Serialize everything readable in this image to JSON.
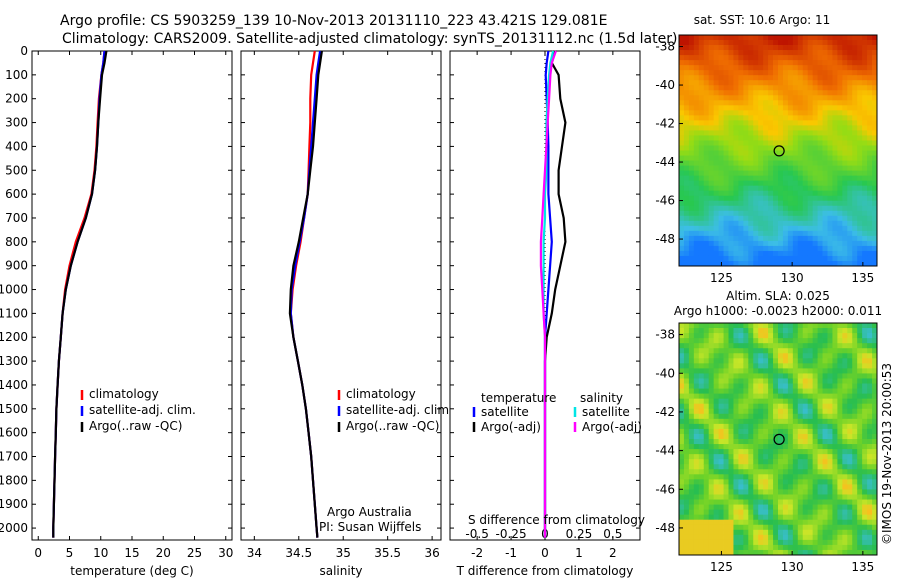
{
  "header": {
    "line1": "Argo profile: CS 5903259_139 10-Nov-2013 20131110_223 43.421S 129.081E",
    "line2": "Climatology: CARS2009. Satellite-adjusted climatology: synTS_20131112.nc (1.5d later)"
  },
  "depth_axis": {
    "ticks": [
      "0",
      "100",
      "200",
      "300",
      "400",
      "500",
      "600",
      "700",
      "800",
      "900",
      "1000",
      "1100",
      "1200",
      "1300",
      "1400",
      "1500",
      "1600",
      "1700",
      "1800",
      "1900",
      "2000"
    ]
  },
  "footer_text": {
    "org": "Argo Australia",
    "pi": "PI: Susan Wijffels",
    "s_diff_label": "S difference from climatology",
    "vertical_stamp": "©IMOS 19-Nov-2013 20:00:53"
  },
  "colors": {
    "climatology": "#ff0000",
    "satellite": "#0000ff",
    "argo": "#000000",
    "sal_satellite": "#00e5e5",
    "sal_argo": "#ff00ff"
  },
  "chart_data": [
    {
      "type": "line",
      "name": "temperature",
      "xlabel": "temperature (deg C)",
      "ylabel": "",
      "xlim": [
        -1,
        31
      ],
      "ylim": [
        2050,
        0
      ],
      "xticks": [
        "0",
        "5",
        "10",
        "15",
        "20",
        "25",
        "30"
      ],
      "legend": [
        "climatology",
        "satellite-adj. clim.",
        "Argo(..raw -QC)"
      ],
      "depth": [
        0,
        50,
        100,
        200,
        300,
        400,
        500,
        600,
        700,
        800,
        900,
        1000,
        1100,
        1200,
        1300,
        1400,
        1500,
        1600,
        1700,
        1800,
        1900,
        2000,
        2040
      ],
      "series": [
        {
          "name": "climatology",
          "values": [
            10.6,
            10.4,
            10.1,
            9.7,
            9.5,
            9.3,
            9.0,
            8.5,
            7.4,
            6.0,
            5.0,
            4.3,
            3.9,
            3.6,
            3.3,
            3.1,
            2.9,
            2.8,
            2.7,
            2.6,
            2.5,
            2.4,
            2.4
          ]
        },
        {
          "name": "satellite-adj. clim.",
          "values": [
            10.6,
            10.4,
            10.1,
            9.8,
            9.6,
            9.4,
            9.1,
            8.6,
            7.6,
            6.3,
            5.2,
            4.4,
            3.9,
            3.6,
            3.3,
            3.1,
            2.9,
            2.8,
            2.7,
            2.6,
            2.5,
            2.4,
            2.4
          ]
        },
        {
          "name": "Argo(..raw -QC)",
          "values": [
            10.9,
            10.6,
            10.2,
            9.9,
            9.6,
            9.4,
            9.1,
            8.6,
            7.6,
            6.3,
            5.2,
            4.4,
            3.9,
            3.6,
            3.3,
            3.1,
            2.9,
            2.8,
            2.7,
            2.6,
            2.5,
            2.4,
            2.4
          ]
        }
      ]
    },
    {
      "type": "line",
      "name": "salinity",
      "xlabel": "salinity",
      "xlim": [
        33.85,
        36.1
      ],
      "ylim": [
        2050,
        0
      ],
      "xticks": [
        "34",
        "34.5",
        "35",
        "35.5",
        "36"
      ],
      "legend": [
        "climatology",
        "satellite-adj. clim.",
        "Argo(..raw -QC)"
      ],
      "depth": [
        0,
        50,
        100,
        200,
        300,
        400,
        500,
        600,
        700,
        800,
        900,
        1000,
        1100,
        1200,
        1300,
        1400,
        1500,
        1600,
        1700,
        1800,
        1900,
        2000,
        2040
      ],
      "series": [
        {
          "name": "climatology",
          "values": [
            34.68,
            34.66,
            34.64,
            34.63,
            34.63,
            34.62,
            34.61,
            34.6,
            34.56,
            34.52,
            34.47,
            34.43,
            34.41,
            34.44,
            34.49,
            34.54,
            34.58,
            34.61,
            34.64,
            34.66,
            34.68,
            34.7,
            34.71
          ]
        },
        {
          "name": "satellite-adj. clim.",
          "values": [
            34.74,
            34.72,
            34.7,
            34.68,
            34.66,
            34.64,
            34.62,
            34.6,
            34.56,
            34.51,
            34.46,
            34.42,
            34.41,
            34.44,
            34.49,
            34.54,
            34.58,
            34.61,
            34.64,
            34.66,
            34.68,
            34.7,
            34.71
          ]
        },
        {
          "name": "Argo(..raw -QC)",
          "values": [
            34.76,
            34.74,
            34.72,
            34.7,
            34.68,
            34.66,
            34.63,
            34.6,
            34.55,
            34.5,
            34.44,
            34.41,
            34.4,
            34.44,
            34.49,
            34.54,
            34.58,
            34.61,
            34.64,
            34.66,
            34.68,
            34.7,
            34.71
          ]
        }
      ]
    },
    {
      "type": "line",
      "name": "differences",
      "xlabel": "T difference from climatology",
      "xlim": [
        -2.8,
        2.8
      ],
      "ylim": [
        2050,
        0
      ],
      "xticks": [
        "-2",
        "-1",
        "0",
        "1",
        "2"
      ],
      "top_xticks": [
        "-0.5",
        "-0.25",
        "0",
        "0.25",
        "0.5"
      ],
      "legend_headers": [
        "temperature",
        "salinity"
      ],
      "legend": [
        "satellite",
        "Argo(-adj)",
        "satellite",
        "Argo(-adj)"
      ],
      "depth": [
        0,
        50,
        100,
        200,
        300,
        400,
        500,
        600,
        700,
        800,
        900,
        1000,
        1100,
        1200,
        1300,
        1400,
        1500,
        1600,
        1700,
        1800,
        1900,
        2000,
        2040
      ],
      "series": [
        {
          "name": "T satellite",
          "values": [
            0.1,
            0.05,
            0.02,
            0.05,
            0.08,
            0.1,
            0.1,
            0.1,
            0.15,
            0.2,
            0.15,
            0.1,
            0.05,
            0,
            0,
            0,
            0,
            0,
            0,
            0,
            0,
            0,
            0
          ]
        },
        {
          "name": "T Argo(-adj)",
          "values": [
            0.3,
            0.2,
            0.4,
            0.45,
            0.6,
            0.5,
            0.4,
            0.4,
            0.55,
            0.6,
            0.45,
            0.3,
            0.2,
            0.05,
            0,
            0,
            0,
            0,
            0,
            0,
            0,
            0,
            0
          ]
        },
        {
          "name": "S satellite",
          "values": [
            0.06,
            0.04,
            0.03,
            0.02,
            0.01,
            0.01,
            0.01,
            0.0,
            0.0,
            -0.01,
            -0.01,
            -0.01,
            -0.01,
            0,
            0,
            0,
            0,
            0,
            0,
            0,
            0,
            0,
            0
          ]
        },
        {
          "name": "S Argo(-adj)",
          "values": [
            0.08,
            0.05,
            0.04,
            0.03,
            0.02,
            0.01,
            0.0,
            -0.01,
            -0.02,
            -0.03,
            -0.03,
            -0.02,
            -0.01,
            0,
            0,
            0,
            0,
            0,
            0,
            0,
            0,
            0,
            0
          ]
        }
      ]
    },
    {
      "type": "heatmap",
      "name": "sst_map",
      "title": "sat. SST: 10.6  Argo: 11",
      "xticks": [
        "125",
        "130",
        "135"
      ],
      "yticks": [
        "-38",
        "-40",
        "-42",
        "-44",
        "-46",
        "-48"
      ],
      "xlim": [
        122,
        136
      ],
      "ylim": [
        -49.4,
        -37.4
      ],
      "marker": {
        "lon": 129.08,
        "lat": -43.42
      }
    },
    {
      "type": "heatmap",
      "name": "sla_map",
      "title": "Altim. SLA: 0.025",
      "subtitle": "Argo h1000: -0.0023  h2000: 0.011",
      "xticks": [
        "125",
        "130",
        "135"
      ],
      "yticks": [
        "-38",
        "-40",
        "-42",
        "-44",
        "-46",
        "-48"
      ],
      "xlim": [
        122,
        136
      ],
      "ylim": [
        -49.4,
        -37.4
      ],
      "marker": {
        "lon": 129.08,
        "lat": -43.42
      }
    }
  ]
}
